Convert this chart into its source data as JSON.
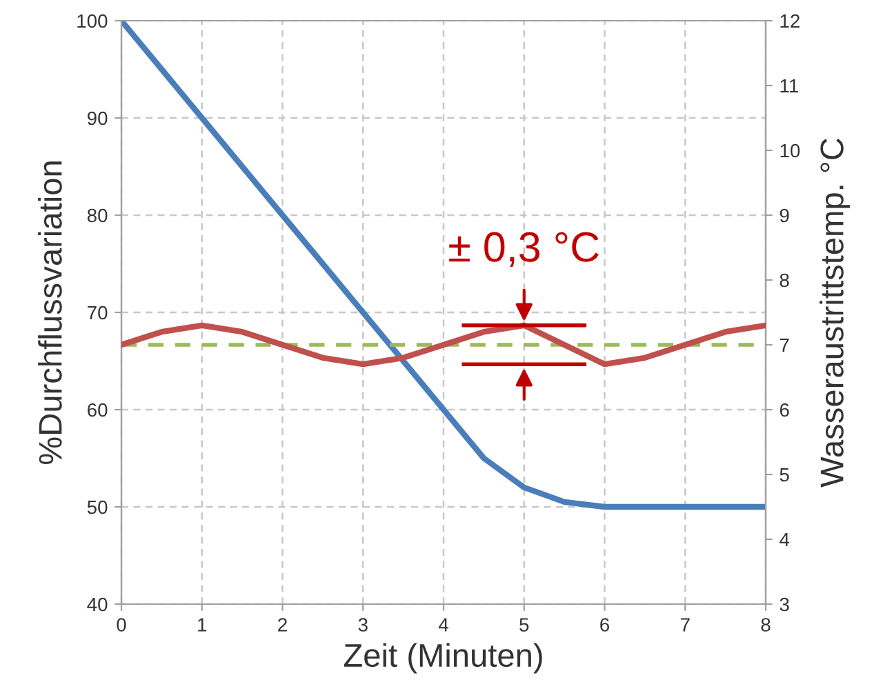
{
  "chart_data": {
    "type": "line",
    "xlabel": "Zeit (Minuten)",
    "ylabel": "%Durchflussvariation",
    "y2label": "Wasseraustrittstemp. °C",
    "xlim": [
      0,
      8
    ],
    "xticks": [
      0,
      1,
      2,
      3,
      4,
      5,
      6,
      7,
      8
    ],
    "ylim": [
      40,
      100
    ],
    "yticks": [
      40,
      50,
      60,
      70,
      80,
      90,
      100
    ],
    "y2lim": [
      3,
      12
    ],
    "y2ticks": [
      3,
      4,
      5,
      6,
      7,
      8,
      9,
      10,
      11,
      12
    ],
    "grid": true,
    "line_style": "solid",
    "series": [
      {
        "color": "#4a7ebb",
        "x": [
          0,
          1,
          2,
          3,
          4,
          4.5,
          5,
          5.5,
          6,
          6.5,
          7,
          7.5,
          8
        ],
        "values": [
          100,
          90,
          80,
          70,
          60,
          55,
          52,
          50.5,
          50,
          50,
          50,
          50,
          50
        ]
      },
      {
        "color": "#c0504d",
        "axis": "y2",
        "x": [
          0,
          0.5,
          1,
          1.5,
          2,
          2.5,
          3,
          3.5,
          4,
          4.5,
          5,
          5.5,
          6,
          6.5,
          7,
          7.5,
          8
        ],
        "values": [
          7.0,
          7.2,
          7.3,
          7.2,
          7.0,
          6.8,
          6.7,
          6.8,
          7.0,
          7.2,
          7.3,
          7.0,
          6.7,
          6.8,
          7.0,
          7.2,
          7.3
        ]
      }
    ],
    "ref_lines": [
      {
        "axis": "y2",
        "value": 7,
        "label": null,
        "color": "#9bbb59",
        "line_style": "dashed"
      }
    ],
    "annotations": [
      "± 0,3 °C"
    ]
  }
}
